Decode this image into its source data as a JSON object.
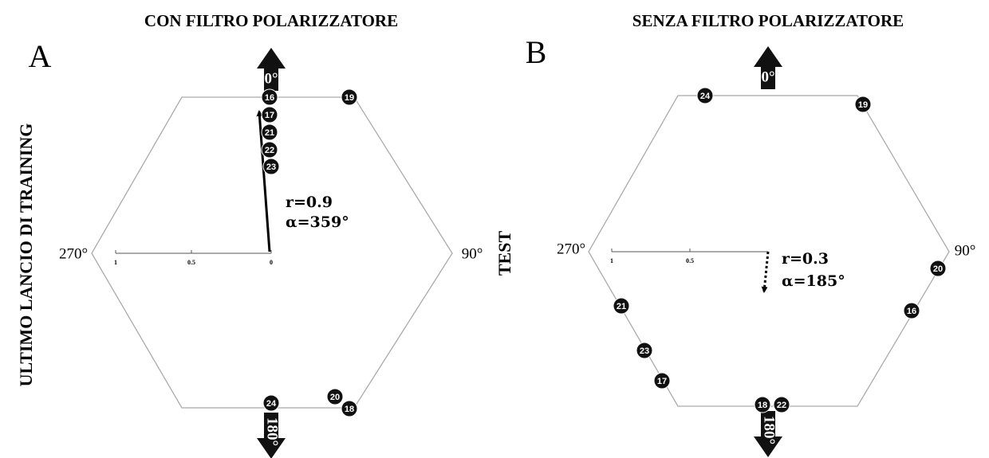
{
  "panels": [
    {
      "letter": "A",
      "title": "CON FILTRO POLARIZZATORE",
      "side_label": "ULTIMO LANCIO DI TRAINING",
      "angles": {
        "top": "0°",
        "bottom": "180°",
        "left": "270°",
        "right": "90°"
      },
      "scale": [
        "1",
        "0.5",
        "0"
      ],
      "markers": [
        "16",
        "19",
        "17",
        "21",
        "22",
        "23",
        "24",
        "20",
        "18"
      ],
      "stats": {
        "r": "r=0.9",
        "alpha": "α=359°"
      }
    },
    {
      "letter": "B",
      "title": "SENZA FILTRO POLARIZZATORE",
      "side_label": "TEST",
      "angles": {
        "top": "0°",
        "bottom": "180°",
        "left": "270°",
        "right": "90°"
      },
      "scale": [
        "1",
        "0.5"
      ],
      "markers": [
        "24",
        "19",
        "20",
        "16",
        "21",
        "23",
        "17",
        "18",
        "22"
      ],
      "stats": {
        "r": "r=0.3",
        "alpha": "α=185°"
      }
    }
  ]
}
